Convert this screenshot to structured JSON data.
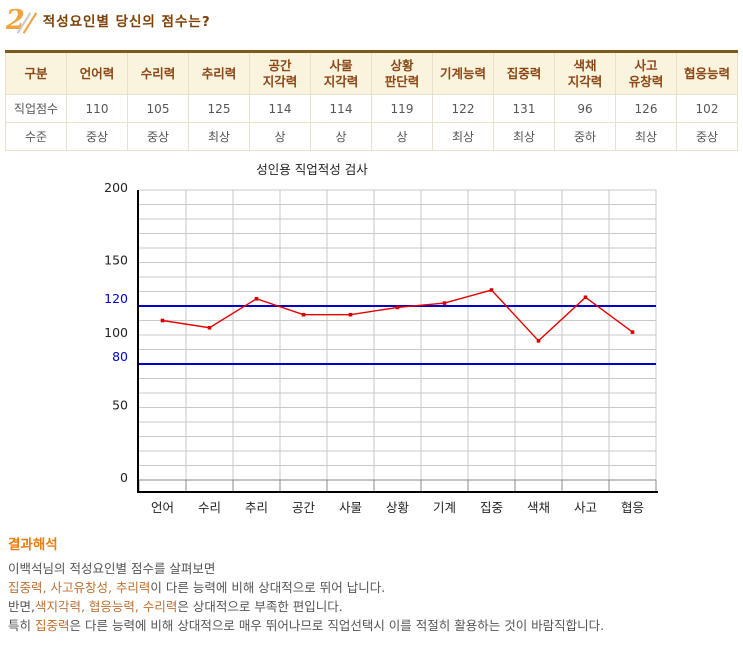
{
  "header": {
    "number": "2",
    "title": "적성요인별 당신의 점수는?"
  },
  "table": {
    "columns": [
      "구분",
      "언어력",
      "수리력",
      "추리력",
      "공간\n지각력",
      "사물\n지각력",
      "상황\n판단력",
      "기계능력",
      "집중력",
      "색채\n지각력",
      "사고\n유창력",
      "협응능력"
    ],
    "rows": [
      {
        "label": "직업점수",
        "values": [
          "110",
          "105",
          "125",
          "114",
          "114",
          "119",
          "122",
          "131",
          "96",
          "126",
          "102"
        ]
      },
      {
        "label": "수준",
        "values": [
          "중상",
          "중상",
          "최상",
          "상",
          "상",
          "상",
          "최상",
          "최상",
          "중하",
          "최상",
          "중상"
        ]
      }
    ]
  },
  "chart_data": {
    "type": "line",
    "title": "성인용 직업적성 검사",
    "categories": [
      "언어",
      "수리",
      "추리",
      "공간",
      "사물",
      "상황",
      "기계",
      "집중",
      "색채",
      "사고",
      "협응"
    ],
    "values": [
      110,
      105,
      125,
      114,
      114,
      119,
      122,
      131,
      96,
      126,
      102
    ],
    "xlabel": "",
    "ylabel": "",
    "ylim": [
      0,
      200
    ],
    "yticks": [
      0,
      50,
      80,
      100,
      120,
      150,
      200
    ],
    "highlight_ticks": [
      80,
      120
    ],
    "reference_lines": [
      {
        "value": 120,
        "color": "#0000CC"
      },
      {
        "value": 80,
        "color": "#0000CC"
      }
    ],
    "grid": "on",
    "grid_step": 10,
    "legend": "none",
    "line_color": "#E60000",
    "marker_color": "#D40000",
    "grid_color": "#C9C9C9",
    "axis_color": "#000000",
    "tick_color": "#222222",
    "blue_tick_color": "#0000CC"
  },
  "interpretation": {
    "heading": "결과해석",
    "lines": [
      [
        {
          "text": "이백석님의 적성요인별 점수를 살펴보면",
          "hl": false
        }
      ],
      [
        {
          "text": "집중력, 사고유창성, 추리력",
          "hl": true
        },
        {
          "text": "이 다른 능력에 비해 상대적으로 뛰어 납니다.",
          "hl": false
        }
      ],
      [
        {
          "text": "반면,",
          "hl": false
        },
        {
          "text": "색지각력, 협응능력, 수리력",
          "hl": true
        },
        {
          "text": "은 상대적으로 부족한 편입니다.",
          "hl": false
        }
      ],
      [
        {
          "text": "특히 ",
          "hl": false
        },
        {
          "text": "집중력",
          "hl": true
        },
        {
          "text": "은 다른 능력에 비해 상대적으로 매우 뛰어나므로 직업선택시 이를 적절히 활용하는 것이 바람직합니다.",
          "hl": false
        }
      ]
    ]
  },
  "colors": {
    "accent_orange": "#F0A23C",
    "title_brown": "#7E3F04",
    "table_border_brown": "#7A5A1E",
    "header_bg": "#FAF4DF",
    "header_text": "#8A4616",
    "interp_heading": "#ED7C0B",
    "interp_highlight": "#BE7032",
    "body_text": "#555555"
  }
}
